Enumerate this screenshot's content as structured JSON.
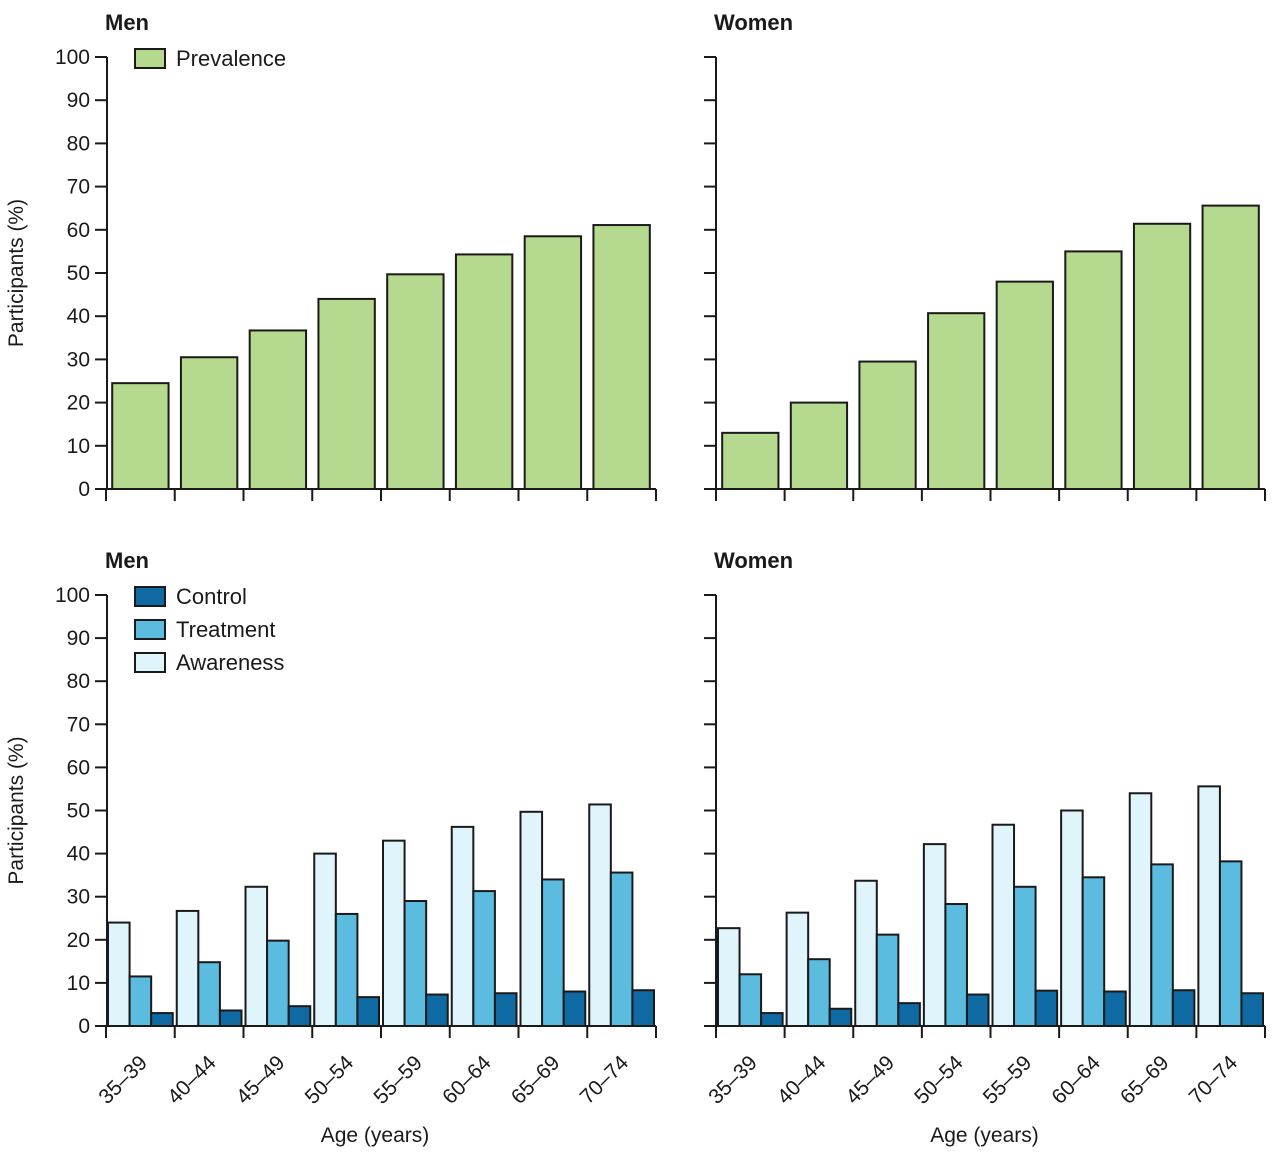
{
  "colors": {
    "prevalence": "#b5d98f",
    "control": "#0f6aa3",
    "treatment": "#5cbcdf",
    "awareness": "#dff4fb"
  },
  "chart_data": [
    {
      "type": "bar",
      "title": "Men",
      "ylabel": "Participants (%)",
      "xlabel": "",
      "ylim": [
        0,
        100
      ],
      "yticks": [
        0,
        10,
        20,
        30,
        40,
        50,
        60,
        70,
        80,
        90,
        100
      ],
      "categories": [
        "35–39",
        "40–44",
        "45–49",
        "50–54",
        "55–59",
        "60–64",
        "65–69",
        "70–74"
      ],
      "legend": "top-left",
      "series": [
        {
          "name": "Prevalence",
          "color_key": "prevalence",
          "values": [
            24.5,
            30.5,
            36.7,
            44.0,
            49.7,
            54.3,
            58.5,
            61.1
          ]
        }
      ]
    },
    {
      "type": "bar",
      "title": "Women",
      "ylabel": "",
      "xlabel": "",
      "ylim": [
        0,
        100
      ],
      "yticks": [
        0,
        10,
        20,
        30,
        40,
        50,
        60,
        70,
        80,
        90,
        100
      ],
      "categories": [
        "35–39",
        "40–44",
        "45–49",
        "50–54",
        "55–59",
        "60–64",
        "65–69",
        "70–74"
      ],
      "legend": "none",
      "series": [
        {
          "color_key": "prevalence",
          "values": [
            13.0,
            20.0,
            29.5,
            40.7,
            48.0,
            55.0,
            61.4,
            65.6
          ]
        }
      ]
    },
    {
      "type": "bar",
      "title": "Men",
      "ylabel": "Participants (%)",
      "xlabel": "Age (years)",
      "ylim": [
        0,
        100
      ],
      "yticks": [
        0,
        10,
        20,
        30,
        40,
        50,
        60,
        70,
        80,
        90,
        100
      ],
      "categories": [
        "35–39",
        "40–44",
        "45–49",
        "50–54",
        "55–59",
        "60–64",
        "65–69",
        "70–74"
      ],
      "legend": "top-left",
      "series": [
        {
          "name": "Awareness",
          "color_key": "awareness",
          "values": [
            24.0,
            26.7,
            32.3,
            40.0,
            43.0,
            46.2,
            49.7,
            51.4
          ]
        },
        {
          "name": "Treatment",
          "color_key": "treatment",
          "values": [
            11.5,
            14.8,
            19.8,
            26.0,
            29.0,
            31.3,
            34.0,
            35.6
          ]
        },
        {
          "name": "Control",
          "color_key": "control",
          "values": [
            3.0,
            3.6,
            4.6,
            6.7,
            7.3,
            7.6,
            8.0,
            8.3
          ]
        }
      ],
      "legend_order": [
        "Control",
        "Treatment",
        "Awareness"
      ]
    },
    {
      "type": "bar",
      "title": "Women",
      "ylabel": "",
      "xlabel": "Age (years)",
      "ylim": [
        0,
        100
      ],
      "yticks": [
        0,
        10,
        20,
        30,
        40,
        50,
        60,
        70,
        80,
        90,
        100
      ],
      "categories": [
        "35–39",
        "40–44",
        "45–49",
        "50–54",
        "55–59",
        "60–64",
        "65–69",
        "70–74"
      ],
      "legend": "none",
      "series": [
        {
          "color_key": "awareness",
          "values": [
            22.7,
            26.3,
            33.7,
            42.2,
            46.7,
            50.0,
            54.0,
            55.6
          ]
        },
        {
          "color_key": "treatment",
          "values": [
            12.0,
            15.5,
            21.2,
            28.3,
            32.3,
            34.5,
            37.5,
            38.2
          ]
        },
        {
          "color_key": "control",
          "values": [
            3.0,
            4.0,
            5.3,
            7.3,
            8.2,
            8.0,
            8.3,
            7.6
          ]
        }
      ]
    }
  ]
}
